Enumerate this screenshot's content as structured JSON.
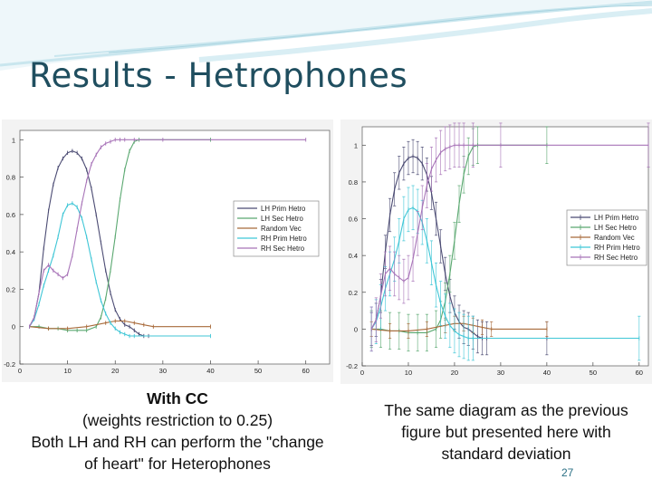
{
  "slide": {
    "title": "Results - Hetrophones",
    "left_caption": {
      "line1": "With CC",
      "line2": "(weights restriction to 0.25)",
      "line3": "Both LH and RH can perform the \"change",
      "line4": "of heart\" for Heterophones"
    },
    "right_caption": {
      "line1": "The same diagram as the previous",
      "line2": "figure but presented here with",
      "line3": "standard deviation"
    },
    "page_number": "27"
  },
  "colors": {
    "title": "#1f4e5f",
    "banner": "#c9e6ee",
    "lh_prim": "#4b4b73",
    "lh_sec": "#5aa870",
    "random": "#a86a3a",
    "rh_prim": "#3fc6d6",
    "rh_sec": "#a874b8"
  },
  "chart_data": [
    {
      "type": "line",
      "title": "",
      "xlabel": "",
      "ylabel": "",
      "xlim": [
        0,
        65
      ],
      "ylim": [
        -0.2,
        1.05
      ],
      "xticks": [
        "0",
        "10",
        "20",
        "30",
        "40",
        "50",
        "60"
      ],
      "yticks": [
        "-0.2",
        "0",
        "0.2",
        "0.4",
        "0.6",
        "0.8",
        "1"
      ],
      "grid": false,
      "legend_position": "right",
      "error_bars": false,
      "series": [
        {
          "name": "LH Prim Hetro",
          "color": "#4b4b73",
          "x": [
            2,
            3,
            4,
            5,
            6,
            7,
            8,
            9,
            10,
            11,
            12,
            13,
            14,
            15,
            16,
            17,
            18,
            19,
            20,
            21,
            22,
            23,
            24,
            25,
            26,
            27
          ],
          "y": [
            0.0,
            0.05,
            0.18,
            0.42,
            0.62,
            0.76,
            0.85,
            0.9,
            0.93,
            0.94,
            0.93,
            0.9,
            0.84,
            0.74,
            0.6,
            0.45,
            0.3,
            0.18,
            0.09,
            0.04,
            0.01,
            0.0,
            -0.02,
            -0.04,
            -0.05,
            -0.05
          ]
        },
        {
          "name": "LH Sec Hetro",
          "color": "#5aa870",
          "x": [
            2,
            4,
            6,
            8,
            10,
            12,
            14,
            16,
            17,
            18,
            19,
            20,
            21,
            22,
            23,
            24,
            25,
            40
          ],
          "y": [
            0.0,
            0.0,
            -0.01,
            -0.01,
            -0.02,
            -0.02,
            -0.02,
            0.0,
            0.05,
            0.15,
            0.3,
            0.48,
            0.68,
            0.84,
            0.94,
            0.99,
            1.0,
            1.0
          ]
        },
        {
          "name": "Random Vec",
          "color": "#a86a3a",
          "x": [
            2,
            6,
            10,
            14,
            18,
            20,
            22,
            24,
            26,
            28,
            40
          ],
          "y": [
            0.0,
            -0.01,
            -0.01,
            0.0,
            0.02,
            0.03,
            0.03,
            0.02,
            0.01,
            0.0,
            0.0
          ]
        },
        {
          "name": "RH Prim Hetro",
          "color": "#3fc6d6",
          "x": [
            2,
            3,
            4,
            5,
            6,
            7,
            8,
            9,
            10,
            11,
            12,
            13,
            14,
            15,
            16,
            17,
            18,
            19,
            20,
            21,
            22,
            23,
            24,
            40
          ],
          "y": [
            0.0,
            0.04,
            0.12,
            0.22,
            0.3,
            0.38,
            0.48,
            0.6,
            0.65,
            0.66,
            0.64,
            0.58,
            0.48,
            0.36,
            0.24,
            0.14,
            0.07,
            0.02,
            -0.01,
            -0.03,
            -0.04,
            -0.05,
            -0.05,
            -0.05
          ]
        },
        {
          "name": "RH Sec Hetro",
          "color": "#a874b8",
          "x": [
            2,
            3,
            4,
            5,
            6,
            7,
            8,
            9,
            10,
            11,
            12,
            13,
            14,
            15,
            16,
            17,
            18,
            19,
            20,
            21,
            22,
            24,
            30,
            60
          ],
          "y": [
            0.0,
            0.05,
            0.18,
            0.3,
            0.33,
            0.3,
            0.28,
            0.26,
            0.28,
            0.38,
            0.52,
            0.66,
            0.78,
            0.87,
            0.92,
            0.96,
            0.98,
            0.99,
            1.0,
            1.0,
            1.0,
            1.0,
            1.0,
            1.0
          ]
        }
      ]
    },
    {
      "type": "line",
      "title": "",
      "xlabel": "",
      "ylabel": "",
      "xlim": [
        0,
        62
      ],
      "ylim": [
        -0.2,
        1.1
      ],
      "xticks": [
        "0",
        "10",
        "20",
        "30",
        "40",
        "50",
        "60"
      ],
      "yticks": [
        "-0.2",
        "0",
        "0.2",
        "0.4",
        "0.6",
        "0.8",
        "1"
      ],
      "grid": false,
      "legend_position": "right",
      "error_bars": true,
      "series": [
        {
          "name": "LH Prim Hetro",
          "color": "#4b4b73",
          "x": [
            2,
            3,
            4,
            5,
            6,
            7,
            8,
            9,
            10,
            11,
            12,
            13,
            14,
            15,
            16,
            17,
            18,
            19,
            20,
            21,
            22,
            23,
            24,
            25,
            26,
            27,
            40
          ],
          "y": [
            0.0,
            0.05,
            0.18,
            0.42,
            0.62,
            0.76,
            0.85,
            0.9,
            0.93,
            0.94,
            0.93,
            0.9,
            0.84,
            0.74,
            0.6,
            0.45,
            0.3,
            0.18,
            0.09,
            0.04,
            0.01,
            0.0,
            -0.02,
            -0.04,
            -0.05,
            -0.05,
            -0.05
          ],
          "sd": 0.09
        },
        {
          "name": "LH Sec Hetro",
          "color": "#5aa870",
          "x": [
            2,
            4,
            6,
            8,
            10,
            12,
            14,
            16,
            17,
            18,
            19,
            20,
            21,
            22,
            23,
            24,
            25,
            40
          ],
          "y": [
            0.0,
            0.0,
            -0.01,
            -0.01,
            -0.02,
            -0.02,
            -0.02,
            0.0,
            0.05,
            0.15,
            0.3,
            0.48,
            0.68,
            0.84,
            0.94,
            0.99,
            1.0,
            1.0
          ],
          "sd": 0.1
        },
        {
          "name": "Random Vec",
          "color": "#a86a3a",
          "x": [
            2,
            6,
            10,
            14,
            18,
            20,
            22,
            24,
            26,
            28,
            40
          ],
          "y": [
            0.0,
            -0.01,
            -0.01,
            0.0,
            0.02,
            0.03,
            0.03,
            0.02,
            0.01,
            0.0,
            0.0
          ],
          "sd": 0.04
        },
        {
          "name": "RH Prim Hetro",
          "color": "#3fc6d6",
          "x": [
            2,
            3,
            4,
            5,
            6,
            7,
            8,
            9,
            10,
            11,
            12,
            13,
            14,
            15,
            16,
            17,
            18,
            19,
            20,
            21,
            22,
            23,
            24,
            60
          ],
          "y": [
            0.0,
            0.04,
            0.12,
            0.22,
            0.3,
            0.38,
            0.48,
            0.6,
            0.65,
            0.66,
            0.64,
            0.58,
            0.48,
            0.36,
            0.24,
            0.14,
            0.07,
            0.02,
            -0.01,
            -0.03,
            -0.04,
            -0.05,
            -0.05,
            -0.05
          ],
          "sd": 0.12
        },
        {
          "name": "RH Sec Hetro",
          "color": "#a874b8",
          "x": [
            2,
            3,
            4,
            5,
            6,
            7,
            8,
            9,
            10,
            11,
            12,
            13,
            14,
            15,
            16,
            17,
            18,
            19,
            20,
            21,
            22,
            24,
            30,
            62
          ],
          "y": [
            0.0,
            0.05,
            0.18,
            0.3,
            0.33,
            0.3,
            0.28,
            0.26,
            0.28,
            0.38,
            0.52,
            0.66,
            0.78,
            0.87,
            0.92,
            0.96,
            0.98,
            0.99,
            1.0,
            1.0,
            1.0,
            1.0,
            1.0,
            1.0
          ],
          "sd": 0.12
        }
      ]
    }
  ]
}
